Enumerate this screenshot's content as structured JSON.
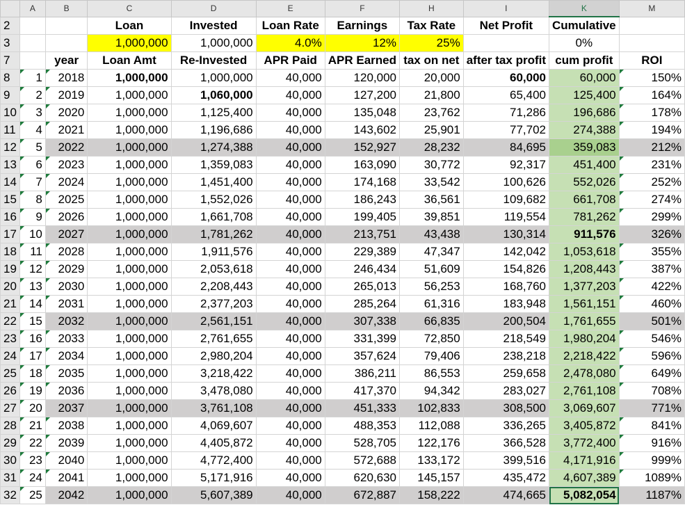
{
  "column_headers": [
    "A",
    "B",
    "C",
    "D",
    "E",
    "F",
    "H",
    "I",
    "K",
    "M"
  ],
  "selected_column": "K",
  "row2": {
    "loan": "Loan",
    "invested": "Invested",
    "loan_rate": "Loan Rate",
    "earnings": "Earnings",
    "tax_rate": "Tax Rate",
    "net_profit": "Net Profit",
    "cumulative": "Cumulative"
  },
  "row3": {
    "loan": "1,000,000",
    "invested": "1,000,000",
    "loan_rate": "4.0%",
    "earnings": "12%",
    "tax_rate": "25%",
    "cumulative": "0%"
  },
  "table_headers": {
    "year": "year",
    "loan_amt": "Loan Amt",
    "reinvested": "Re-Invested",
    "apr_paid": "APR Paid",
    "apr_earned": "APR Earned",
    "tax_on_net": "tax on net",
    "after_tax_profit": "after tax profit",
    "cum_profit": "cum profit",
    "roi": "ROI"
  },
  "colors": {
    "yellow": "#ffff00",
    "gray_band": "#d0cece",
    "green": "#c6e0b4",
    "highlight_red": "#e01010",
    "excel_green": "#217346"
  },
  "rows": [
    {
      "row_num": "8",
      "n": "1",
      "year": "2018",
      "loan_amt": "1,000,000",
      "reinvested": "1,000,000",
      "apr_paid": "40,000",
      "apr_earned": "120,000",
      "tax": "20,000",
      "after_tax": "60,000",
      "cum": "60,000",
      "roi": "150%"
    },
    {
      "row_num": "9",
      "n": "2",
      "year": "2019",
      "loan_amt": "1,000,000",
      "reinvested": "1,060,000",
      "apr_paid": "40,000",
      "apr_earned": "127,200",
      "tax": "21,800",
      "after_tax": "65,400",
      "cum": "125,400",
      "roi": "164%"
    },
    {
      "row_num": "10",
      "n": "3",
      "year": "2020",
      "loan_amt": "1,000,000",
      "reinvested": "1,125,400",
      "apr_paid": "40,000",
      "apr_earned": "135,048",
      "tax": "23,762",
      "after_tax": "71,286",
      "cum": "196,686",
      "roi": "178%"
    },
    {
      "row_num": "11",
      "n": "4",
      "year": "2021",
      "loan_amt": "1,000,000",
      "reinvested": "1,196,686",
      "apr_paid": "40,000",
      "apr_earned": "143,602",
      "tax": "25,901",
      "after_tax": "77,702",
      "cum": "274,388",
      "roi": "194%"
    },
    {
      "row_num": "12",
      "n": "5",
      "year": "2022",
      "loan_amt": "1,000,000",
      "reinvested": "1,274,388",
      "apr_paid": "40,000",
      "apr_earned": "152,927",
      "tax": "28,232",
      "after_tax": "84,695",
      "cum": "359,083",
      "roi": "212%"
    },
    {
      "row_num": "13",
      "n": "6",
      "year": "2023",
      "loan_amt": "1,000,000",
      "reinvested": "1,359,083",
      "apr_paid": "40,000",
      "apr_earned": "163,090",
      "tax": "30,772",
      "after_tax": "92,317",
      "cum": "451,400",
      "roi": "231%"
    },
    {
      "row_num": "14",
      "n": "7",
      "year": "2024",
      "loan_amt": "1,000,000",
      "reinvested": "1,451,400",
      "apr_paid": "40,000",
      "apr_earned": "174,168",
      "tax": "33,542",
      "after_tax": "100,626",
      "cum": "552,026",
      "roi": "252%"
    },
    {
      "row_num": "15",
      "n": "8",
      "year": "2025",
      "loan_amt": "1,000,000",
      "reinvested": "1,552,026",
      "apr_paid": "40,000",
      "apr_earned": "186,243",
      "tax": "36,561",
      "after_tax": "109,682",
      "cum": "661,708",
      "roi": "274%"
    },
    {
      "row_num": "16",
      "n": "9",
      "year": "2026",
      "loan_amt": "1,000,000",
      "reinvested": "1,661,708",
      "apr_paid": "40,000",
      "apr_earned": "199,405",
      "tax": "39,851",
      "after_tax": "119,554",
      "cum": "781,262",
      "roi": "299%"
    },
    {
      "row_num": "17",
      "n": "10",
      "year": "2027",
      "loan_amt": "1,000,000",
      "reinvested": "1,781,262",
      "apr_paid": "40,000",
      "apr_earned": "213,751",
      "tax": "43,438",
      "after_tax": "130,314",
      "cum": "911,576",
      "roi": "326%"
    },
    {
      "row_num": "18",
      "n": "11",
      "year": "2028",
      "loan_amt": "1,000,000",
      "reinvested": "1,911,576",
      "apr_paid": "40,000",
      "apr_earned": "229,389",
      "tax": "47,347",
      "after_tax": "142,042",
      "cum": "1,053,618",
      "roi": "355%"
    },
    {
      "row_num": "19",
      "n": "12",
      "year": "2029",
      "loan_amt": "1,000,000",
      "reinvested": "2,053,618",
      "apr_paid": "40,000",
      "apr_earned": "246,434",
      "tax": "51,609",
      "after_tax": "154,826",
      "cum": "1,208,443",
      "roi": "387%"
    },
    {
      "row_num": "20",
      "n": "13",
      "year": "2030",
      "loan_amt": "1,000,000",
      "reinvested": "2,208,443",
      "apr_paid": "40,000",
      "apr_earned": "265,013",
      "tax": "56,253",
      "after_tax": "168,760",
      "cum": "1,377,203",
      "roi": "422%"
    },
    {
      "row_num": "21",
      "n": "14",
      "year": "2031",
      "loan_amt": "1,000,000",
      "reinvested": "2,377,203",
      "apr_paid": "40,000",
      "apr_earned": "285,264",
      "tax": "61,316",
      "after_tax": "183,948",
      "cum": "1,561,151",
      "roi": "460%"
    },
    {
      "row_num": "22",
      "n": "15",
      "year": "2032",
      "loan_amt": "1,000,000",
      "reinvested": "2,561,151",
      "apr_paid": "40,000",
      "apr_earned": "307,338",
      "tax": "66,835",
      "after_tax": "200,504",
      "cum": "1,761,655",
      "roi": "501%"
    },
    {
      "row_num": "23",
      "n": "16",
      "year": "2033",
      "loan_amt": "1,000,000",
      "reinvested": "2,761,655",
      "apr_paid": "40,000",
      "apr_earned": "331,399",
      "tax": "72,850",
      "after_tax": "218,549",
      "cum": "1,980,204",
      "roi": "546%"
    },
    {
      "row_num": "24",
      "n": "17",
      "year": "2034",
      "loan_amt": "1,000,000",
      "reinvested": "2,980,204",
      "apr_paid": "40,000",
      "apr_earned": "357,624",
      "tax": "79,406",
      "after_tax": "238,218",
      "cum": "2,218,422",
      "roi": "596%"
    },
    {
      "row_num": "25",
      "n": "18",
      "year": "2035",
      "loan_amt": "1,000,000",
      "reinvested": "3,218,422",
      "apr_paid": "40,000",
      "apr_earned": "386,211",
      "tax": "86,553",
      "after_tax": "259,658",
      "cum": "2,478,080",
      "roi": "649%"
    },
    {
      "row_num": "26",
      "n": "19",
      "year": "2036",
      "loan_amt": "1,000,000",
      "reinvested": "3,478,080",
      "apr_paid": "40,000",
      "apr_earned": "417,370",
      "tax": "94,342",
      "after_tax": "283,027",
      "cum": "2,761,108",
      "roi": "708%"
    },
    {
      "row_num": "27",
      "n": "20",
      "year": "2037",
      "loan_amt": "1,000,000",
      "reinvested": "3,761,108",
      "apr_paid": "40,000",
      "apr_earned": "451,333",
      "tax": "102,833",
      "after_tax": "308,500",
      "cum": "3,069,607",
      "roi": "771%"
    },
    {
      "row_num": "28",
      "n": "21",
      "year": "2038",
      "loan_amt": "1,000,000",
      "reinvested": "4,069,607",
      "apr_paid": "40,000",
      "apr_earned": "488,353",
      "tax": "112,088",
      "after_tax": "336,265",
      "cum": "3,405,872",
      "roi": "841%"
    },
    {
      "row_num": "29",
      "n": "22",
      "year": "2039",
      "loan_amt": "1,000,000",
      "reinvested": "4,405,872",
      "apr_paid": "40,000",
      "apr_earned": "528,705",
      "tax": "122,176",
      "after_tax": "366,528",
      "cum": "3,772,400",
      "roi": "916%"
    },
    {
      "row_num": "30",
      "n": "23",
      "year": "2040",
      "loan_amt": "1,000,000",
      "reinvested": "4,772,400",
      "apr_paid": "40,000",
      "apr_earned": "572,688",
      "tax": "133,172",
      "after_tax": "399,516",
      "cum": "4,171,916",
      "roi": "999%"
    },
    {
      "row_num": "31",
      "n": "24",
      "year": "2041",
      "loan_amt": "1,000,000",
      "reinvested": "5,171,916",
      "apr_paid": "40,000",
      "apr_earned": "620,630",
      "tax": "145,157",
      "after_tax": "435,472",
      "cum": "4,607,389",
      "roi": "1089%"
    },
    {
      "row_num": "32",
      "n": "25",
      "year": "2042",
      "loan_amt": "1,000,000",
      "reinvested": "5,607,389",
      "apr_paid": "40,000",
      "apr_earned": "672,887",
      "tax": "158,222",
      "after_tax": "474,665",
      "cum": "5,082,054",
      "roi": "1187%"
    }
  ]
}
